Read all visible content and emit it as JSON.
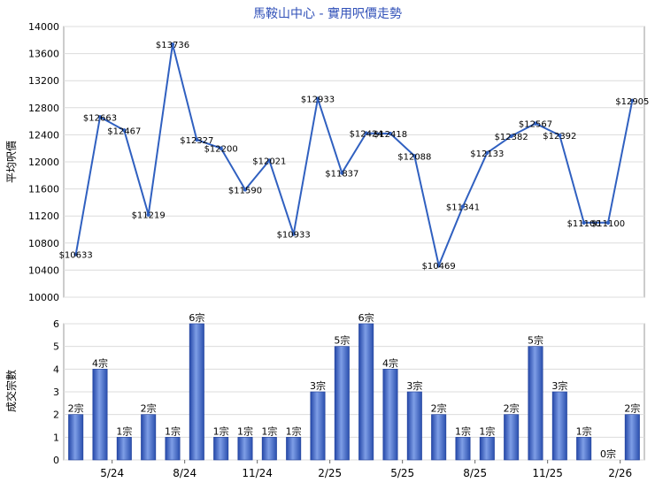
{
  "chart_data": [
    {
      "type": "line",
      "title": "馬鞍山中心 - 實用呎價走勢",
      "ylabel": "平均呎價",
      "ylim": [
        10000,
        14000
      ],
      "yticks": [
        "14000",
        "13600",
        "13200",
        "12800",
        "12400",
        "12000",
        "11600",
        "11200",
        "10800",
        "10400",
        "10000"
      ],
      "grid": true,
      "color": "#3060c0",
      "series": [
        {
          "values": [
            10633,
            12663,
            12467,
            11219,
            13736,
            12327,
            12200,
            11590,
            12021,
            10933,
            12933,
            11837,
            12424,
            12418,
            12088,
            10469,
            11341,
            12133,
            12382,
            12567,
            12392,
            11100,
            11100,
            12905
          ],
          "labels": [
            "$10633",
            "$12663",
            "$12467",
            "$11219",
            "$13736",
            "$12327",
            "$12200",
            "$11590",
            "$12021",
            "$10933",
            "$12933",
            "$11837",
            "$12424",
            "$12418",
            "$12088",
            "$10469",
            "$11341",
            "$12133",
            "$12382",
            "$12567",
            "$12392",
            "$11100",
            "$11100",
            "$12905"
          ]
        }
      ]
    },
    {
      "type": "bar",
      "ylabel": "成交宗數",
      "ylim": [
        0,
        6
      ],
      "yticks": [
        "6",
        "5",
        "4",
        "3",
        "2",
        "1",
        "0"
      ],
      "grid": true,
      "color": "#3a62c4",
      "x_tick_labels": [
        "5/24",
        "8/24",
        "11/24",
        "2/25",
        "5/25",
        "8/25",
        "11/25",
        "2/26"
      ],
      "values": [
        2,
        4,
        1,
        2,
        1,
        6,
        1,
        1,
        1,
        1,
        3,
        5,
        6,
        4,
        3,
        2,
        1,
        1,
        2,
        5,
        3,
        1,
        0,
        2
      ],
      "labels": [
        "2宗",
        "4宗",
        "1宗",
        "2宗",
        "1宗",
        "6宗",
        "1宗",
        "1宗",
        "1宗",
        "1宗",
        "3宗",
        "5宗",
        "6宗",
        "4宗",
        "3宗",
        "2宗",
        "1宗",
        "1宗",
        "2宗",
        "5宗",
        "3宗",
        "1宗",
        "0宗",
        "2宗"
      ]
    }
  ]
}
